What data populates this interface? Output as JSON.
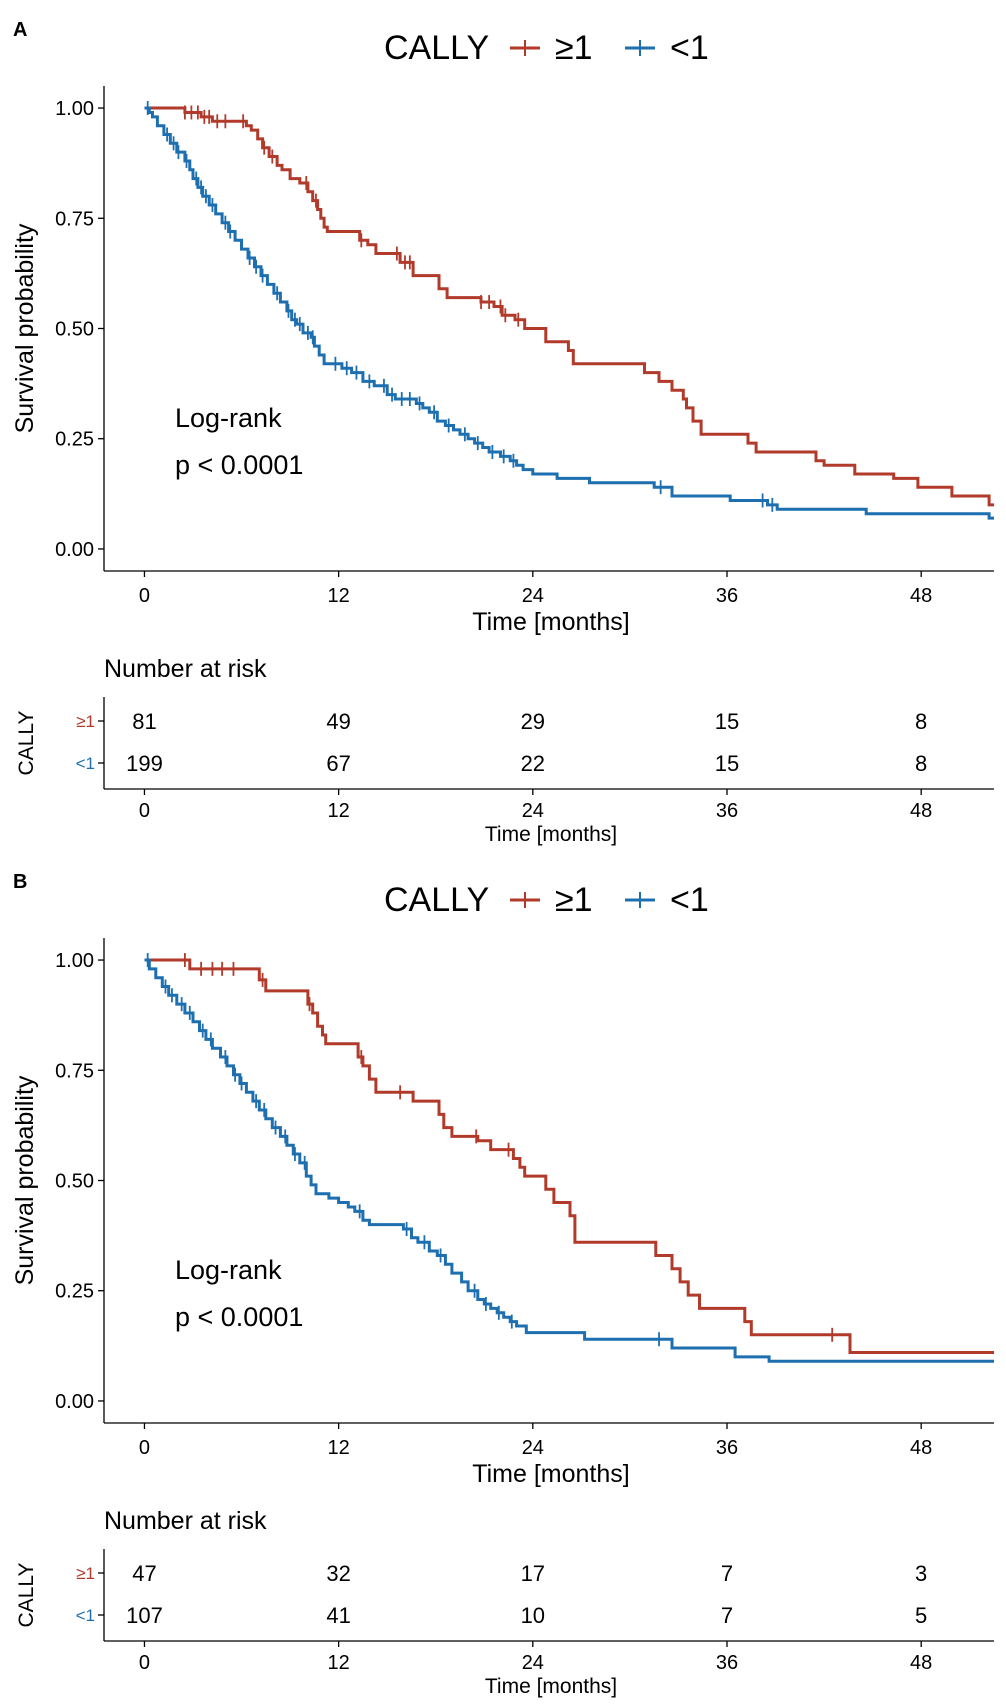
{
  "chart_data": [
    {
      "panel_label": "A",
      "type": "line",
      "subtype": "kaplan-meier",
      "legend": {
        "title": "CALLY",
        "placement": "top",
        "entries": [
          "≥1",
          "<1"
        ]
      },
      "xlabel": "Time [months]",
      "ylabel": "Survival probability",
      "xlim": [
        -2.5,
        52.5
      ],
      "ylim": [
        -0.05,
        1.05
      ],
      "xticks": [
        0,
        12,
        24,
        36,
        48
      ],
      "xtick_labels": [
        "0",
        "12",
        "24",
        "36",
        "48"
      ],
      "yticks": [
        0,
        0.25,
        0.5,
        0.75,
        1.0
      ],
      "ytick_labels": [
        "0.00",
        "0.25",
        "0.50",
        "0.75",
        "1.00"
      ],
      "annotation": [
        "Log-rank",
        "p < 0.0001"
      ],
      "series": [
        {
          "name": "≥1",
          "color": "#B23A2B",
          "steps": [
            [
              0,
              1.0
            ],
            [
              2.5,
              0.99
            ],
            [
              3.5,
              0.98
            ],
            [
              4.2,
              0.97
            ],
            [
              6.3,
              0.96
            ],
            [
              6.6,
              0.95
            ],
            [
              7.0,
              0.93
            ],
            [
              7.3,
              0.91
            ],
            [
              7.7,
              0.89
            ],
            [
              8.2,
              0.87
            ],
            [
              8.5,
              0.86
            ],
            [
              9.0,
              0.84
            ],
            [
              9.6,
              0.83
            ],
            [
              10.1,
              0.81
            ],
            [
              10.4,
              0.79
            ],
            [
              10.7,
              0.77
            ],
            [
              10.9,
              0.75
            ],
            [
              11.1,
              0.73
            ],
            [
              11.3,
              0.72
            ],
            [
              13.3,
              0.7
            ],
            [
              13.8,
              0.69
            ],
            [
              14.3,
              0.67
            ],
            [
              15.8,
              0.65
            ],
            [
              16.6,
              0.62
            ],
            [
              18.2,
              0.59
            ],
            [
              18.7,
              0.57
            ],
            [
              20.8,
              0.56
            ],
            [
              21.6,
              0.55
            ],
            [
              22.1,
              0.53
            ],
            [
              22.9,
              0.52
            ],
            [
              23.5,
              0.5
            ],
            [
              24.8,
              0.47
            ],
            [
              26.2,
              0.45
            ],
            [
              26.5,
              0.42
            ],
            [
              30.9,
              0.4
            ],
            [
              31.8,
              0.38
            ],
            [
              32.6,
              0.36
            ],
            [
              33.3,
              0.34
            ],
            [
              33.5,
              0.32
            ],
            [
              33.9,
              0.29
            ],
            [
              34.4,
              0.26
            ],
            [
              37.3,
              0.24
            ],
            [
              37.8,
              0.22
            ],
            [
              41.5,
              0.2
            ],
            [
              42.0,
              0.19
            ],
            [
              43.9,
              0.17
            ],
            [
              46.3,
              0.16
            ],
            [
              47.8,
              0.14
            ],
            [
              49.9,
              0.12
            ],
            [
              52.2,
              0.1
            ],
            [
              52.5,
              0.1
            ]
          ],
          "censor_times": [
            2.5,
            2.9,
            3.3,
            3.7,
            4.0,
            4.5,
            5.0,
            6.1,
            7.4,
            7.9,
            10.0,
            10.6,
            13.4,
            15.6,
            16.1,
            16.4,
            20.8,
            21.3,
            22.0,
            22.3,
            23.1
          ]
        },
        {
          "name": "<1",
          "color": "#1D6FB0",
          "steps": [
            [
              0,
              1.0
            ],
            [
              0.3,
              0.99
            ],
            [
              0.5,
              0.98
            ],
            [
              0.8,
              0.96
            ],
            [
              1.2,
              0.94
            ],
            [
              1.6,
              0.92
            ],
            [
              2.0,
              0.9
            ],
            [
              2.5,
              0.88
            ],
            [
              2.8,
              0.86
            ],
            [
              3.0,
              0.84
            ],
            [
              3.3,
              0.82
            ],
            [
              3.6,
              0.8
            ],
            [
              4.0,
              0.78
            ],
            [
              4.4,
              0.76
            ],
            [
              4.8,
              0.74
            ],
            [
              5.2,
              0.72
            ],
            [
              5.6,
              0.7
            ],
            [
              6.0,
              0.68
            ],
            [
              6.4,
              0.66
            ],
            [
              6.8,
              0.64
            ],
            [
              7.2,
              0.62
            ],
            [
              7.6,
              0.6
            ],
            [
              8.0,
              0.58
            ],
            [
              8.4,
              0.56
            ],
            [
              8.8,
              0.54
            ],
            [
              9.1,
              0.52
            ],
            [
              9.4,
              0.51
            ],
            [
              9.8,
              0.49
            ],
            [
              10.3,
              0.48
            ],
            [
              10.5,
              0.46
            ],
            [
              10.8,
              0.44
            ],
            [
              11.1,
              0.42
            ],
            [
              12.2,
              0.41
            ],
            [
              12.8,
              0.4
            ],
            [
              13.5,
              0.38
            ],
            [
              14.2,
              0.37
            ],
            [
              15.0,
              0.35
            ],
            [
              15.5,
              0.34
            ],
            [
              16.8,
              0.33
            ],
            [
              17.2,
              0.32
            ],
            [
              17.6,
              0.31
            ],
            [
              18.1,
              0.29
            ],
            [
              18.6,
              0.28
            ],
            [
              19.1,
              0.27
            ],
            [
              19.5,
              0.26
            ],
            [
              20.0,
              0.25
            ],
            [
              20.4,
              0.24
            ],
            [
              20.9,
              0.23
            ],
            [
              21.3,
              0.22
            ],
            [
              22.0,
              0.21
            ],
            [
              22.6,
              0.2
            ],
            [
              23.0,
              0.19
            ],
            [
              23.4,
              0.18
            ],
            [
              24.0,
              0.17
            ],
            [
              25.5,
              0.16
            ],
            [
              27.5,
              0.15
            ],
            [
              31.5,
              0.14
            ],
            [
              32.6,
              0.12
            ],
            [
              36.2,
              0.11
            ],
            [
              38.5,
              0.1
            ],
            [
              39.1,
              0.09
            ],
            [
              44.6,
              0.08
            ],
            [
              52.2,
              0.07
            ],
            [
              52.5,
              0.07
            ]
          ],
          "censor_times": [
            0.2,
            1.4,
            1.8,
            2.1,
            2.6,
            3.2,
            3.5,
            3.8,
            4.2,
            5.0,
            5.3,
            6.5,
            6.9,
            7.3,
            8.2,
            8.9,
            9.3,
            9.6,
            10.1,
            10.4,
            11.8,
            12.5,
            13.1,
            13.9,
            14.8,
            15.3,
            15.9,
            16.4,
            17.0,
            17.9,
            18.8,
            19.8,
            20.6,
            21.5,
            22.2,
            22.8,
            31.9,
            38.2,
            38.8
          ]
        }
      ],
      "risk_table": {
        "title": "Number at risk",
        "ylabel": "CALLY",
        "xlabel": "Time [months]",
        "times": [
          0,
          12,
          24,
          36,
          48
        ],
        "time_labels": [
          "0",
          "12",
          "24",
          "36",
          "48"
        ],
        "rows": [
          {
            "label": "≥1",
            "color": "#B23A2B",
            "counts": [
              "81",
              "49",
              "29",
              "15",
              "8"
            ]
          },
          {
            "label": "<1",
            "color": "#1D6FB0",
            "counts": [
              "199",
              "67",
              "22",
              "15",
              "8"
            ]
          }
        ]
      }
    },
    {
      "panel_label": "B",
      "type": "line",
      "subtype": "kaplan-meier",
      "legend": {
        "title": "CALLY",
        "placement": "top",
        "entries": [
          "≥1",
          "<1"
        ]
      },
      "xlabel": "Time [months]",
      "ylabel": "Survival probability",
      "xlim": [
        -2.5,
        52.5
      ],
      "ylim": [
        -0.05,
        1.05
      ],
      "xticks": [
        0,
        12,
        24,
        36,
        48
      ],
      "xtick_labels": [
        "0",
        "12",
        "24",
        "36",
        "48"
      ],
      "yticks": [
        0,
        0.25,
        0.5,
        0.75,
        1.0
      ],
      "ytick_labels": [
        "0.00",
        "0.25",
        "0.50",
        "0.75",
        "1.00"
      ],
      "annotation": [
        "Log-rank",
        "p < 0.0001"
      ],
      "series": [
        {
          "name": "≥1",
          "color": "#B23A2B",
          "steps": [
            [
              0,
              1.0
            ],
            [
              2.8,
              0.98
            ],
            [
              7.1,
              0.955
            ],
            [
              7.5,
              0.93
            ],
            [
              10.1,
              0.9
            ],
            [
              10.4,
              0.88
            ],
            [
              10.7,
              0.85
            ],
            [
              11.0,
              0.83
            ],
            [
              11.2,
              0.81
            ],
            [
              13.2,
              0.78
            ],
            [
              13.5,
              0.76
            ],
            [
              13.9,
              0.73
            ],
            [
              14.3,
              0.7
            ],
            [
              16.6,
              0.68
            ],
            [
              18.2,
              0.65
            ],
            [
              18.5,
              0.62
            ],
            [
              19.0,
              0.6
            ],
            [
              20.6,
              0.59
            ],
            [
              21.4,
              0.57
            ],
            [
              22.8,
              0.55
            ],
            [
              23.2,
              0.53
            ],
            [
              23.5,
              0.51
            ],
            [
              24.8,
              0.48
            ],
            [
              25.3,
              0.45
            ],
            [
              26.3,
              0.42
            ],
            [
              26.6,
              0.36
            ],
            [
              31.6,
              0.33
            ],
            [
              32.6,
              0.3
            ],
            [
              33.1,
              0.27
            ],
            [
              33.6,
              0.24
            ],
            [
              34.3,
              0.21
            ],
            [
              37.1,
              0.18
            ],
            [
              37.5,
              0.15
            ],
            [
              43.6,
              0.11
            ],
            [
              52.5,
              0.11
            ]
          ],
          "censor_times": [
            2.5,
            3.5,
            4.2,
            4.8,
            5.5,
            7.3,
            10.2,
            13.4,
            15.8,
            20.5,
            22.5,
            42.5
          ]
        },
        {
          "name": "<1",
          "color": "#1D6FB0",
          "steps": [
            [
              0,
              1.0
            ],
            [
              0.3,
              0.98
            ],
            [
              0.7,
              0.96
            ],
            [
              1.1,
              0.94
            ],
            [
              1.5,
              0.92
            ],
            [
              2.0,
              0.9
            ],
            [
              2.5,
              0.88
            ],
            [
              3.0,
              0.86
            ],
            [
              3.4,
              0.84
            ],
            [
              3.8,
              0.82
            ],
            [
              4.2,
              0.8
            ],
            [
              4.7,
              0.78
            ],
            [
              5.1,
              0.76
            ],
            [
              5.5,
              0.74
            ],
            [
              5.9,
              0.72
            ],
            [
              6.3,
              0.7
            ],
            [
              6.7,
              0.68
            ],
            [
              7.1,
              0.66
            ],
            [
              7.5,
              0.64
            ],
            [
              7.9,
              0.62
            ],
            [
              8.4,
              0.6
            ],
            [
              8.8,
              0.58
            ],
            [
              9.2,
              0.56
            ],
            [
              9.6,
              0.54
            ],
            [
              10.0,
              0.51
            ],
            [
              10.3,
              0.49
            ],
            [
              10.6,
              0.47
            ],
            [
              11.4,
              0.46
            ],
            [
              12.0,
              0.45
            ],
            [
              12.6,
              0.44
            ],
            [
              13.0,
              0.43
            ],
            [
              13.5,
              0.41
            ],
            [
              13.9,
              0.4
            ],
            [
              16.0,
              0.39
            ],
            [
              16.5,
              0.37
            ],
            [
              16.9,
              0.36
            ],
            [
              17.6,
              0.34
            ],
            [
              18.1,
              0.33
            ],
            [
              18.6,
              0.31
            ],
            [
              19.0,
              0.29
            ],
            [
              19.6,
              0.27
            ],
            [
              20.0,
              0.25
            ],
            [
              20.6,
              0.23
            ],
            [
              21.0,
              0.22
            ],
            [
              21.4,
              0.21
            ],
            [
              21.8,
              0.2
            ],
            [
              22.2,
              0.19
            ],
            [
              22.6,
              0.18
            ],
            [
              23.0,
              0.17
            ],
            [
              23.6,
              0.155
            ],
            [
              27.2,
              0.14
            ],
            [
              32.6,
              0.12
            ],
            [
              36.5,
              0.1
            ],
            [
              38.6,
              0.09
            ],
            [
              52.5,
              0.09
            ]
          ],
          "censor_times": [
            0.2,
            1.3,
            1.7,
            2.3,
            2.8,
            3.6,
            4.1,
            5.0,
            5.6,
            6.0,
            6.9,
            7.4,
            8.1,
            8.7,
            9.3,
            9.9,
            13.3,
            16.2,
            17.3,
            18.3,
            20.4,
            21.1,
            21.9,
            22.7,
            31.8
          ]
        }
      ],
      "risk_table": {
        "title": "Number at risk",
        "ylabel": "CALLY",
        "xlabel": "Time [months]",
        "times": [
          0,
          12,
          24,
          36,
          48
        ],
        "time_labels": [
          "0",
          "12",
          "24",
          "36",
          "48"
        ],
        "rows": [
          {
            "label": "≥1",
            "color": "#B23A2B",
            "counts": [
              "47",
              "32",
              "17",
              "7",
              "3"
            ]
          },
          {
            "label": "<1",
            "color": "#1D6FB0",
            "counts": [
              "107",
              "41",
              "10",
              "7",
              "5"
            ]
          }
        ]
      }
    }
  ]
}
